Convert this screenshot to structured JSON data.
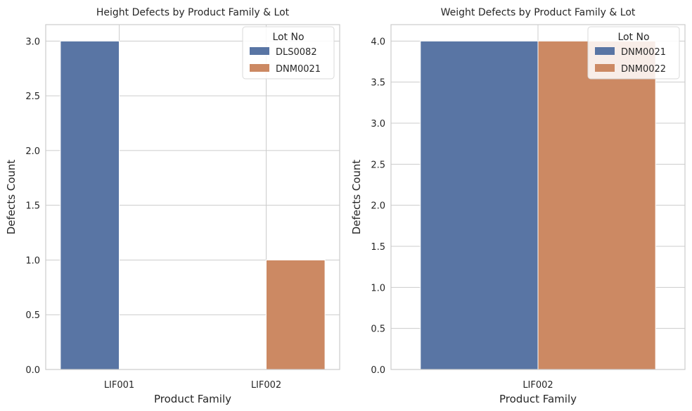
{
  "chart_data": [
    {
      "type": "bar",
      "title": "Height Defects by Product Family &  Lot",
      "xlabel": "Product Family",
      "ylabel": "Defects Count",
      "categories": [
        "LIF001",
        "LIF002"
      ],
      "ylim": [
        0,
        3.15
      ],
      "yticks": [
        "0.0",
        "0.5",
        "1.0",
        "1.5",
        "2.0",
        "2.5",
        "3.0"
      ],
      "grid": true,
      "legend": {
        "title": "Lot No",
        "position": "top-right"
      },
      "series": [
        {
          "name": "DLS0082",
          "color": "#5975a4",
          "values": [
            3,
            null
          ]
        },
        {
          "name": "DNM0021",
          "color": "#cc8963",
          "values": [
            null,
            1
          ]
        }
      ]
    },
    {
      "type": "bar",
      "title": "Weight Defects by Product Family &  Lot",
      "xlabel": "Product Family",
      "ylabel": "Defects Count",
      "categories": [
        "LIF002"
      ],
      "ylim": [
        0,
        4.2
      ],
      "yticks": [
        "0.0",
        "0.5",
        "1.0",
        "1.5",
        "2.0",
        "2.5",
        "3.0",
        "3.5",
        "4.0"
      ],
      "grid": true,
      "legend": {
        "title": "Lot No",
        "position": "top-right"
      },
      "series": [
        {
          "name": "DNM0021",
          "color": "#5975a4",
          "values": [
            4
          ]
        },
        {
          "name": "DNM0022",
          "color": "#cc8963",
          "values": [
            4
          ]
        }
      ]
    }
  ]
}
